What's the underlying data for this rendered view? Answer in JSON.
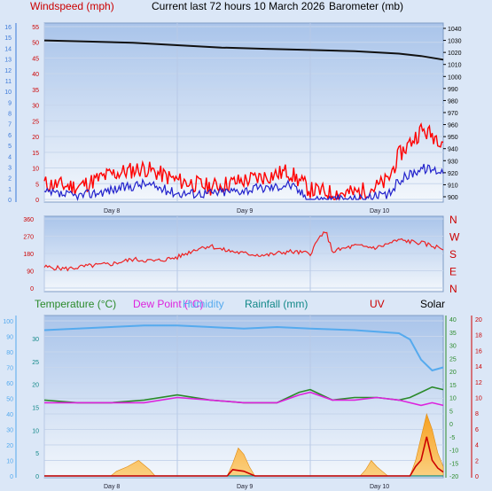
{
  "header": {
    "windspeed_label": "Windspeed (mph)",
    "title": "Current last 72 hours 10 March 2026",
    "barometer_label": "Barometer (mb)"
  },
  "bottom_legend": {
    "temperature": "Temperature (°C)",
    "dew_point": "Dew Point (°C)",
    "humidity": "Humidity",
    "rainfall": "Rainfall (mm)",
    "uv": "UV",
    "solar": "Solar"
  },
  "colors": {
    "wind_axis": "#cc0000",
    "bft_axis": "#3a78d8",
    "pressure": "#111111",
    "wind_gust": "#ff0000",
    "wind_avg": "#2222cc",
    "direction": "#ee2222",
    "temperature": "#2a8a2a",
    "dew_point": "#dd22dd",
    "humidity": "#55aaee",
    "rainfall": "#118888",
    "uv": "#cc0000",
    "solar": "#f09010"
  },
  "chart_data": [
    {
      "type": "line",
      "x_ticks": [
        "Day 8",
        "Day 9",
        "Day 10"
      ],
      "x_hours": [
        0,
        72
      ],
      "day_starts_hours": [
        0,
        24,
        48
      ],
      "left_axis_mph": {
        "min": 0,
        "max": 55,
        "ticks": [
          "0",
          "5",
          "10",
          "15",
          "20",
          "25",
          "30",
          "35",
          "40",
          "45",
          "50",
          "55"
        ]
      },
      "left_axis_bft": {
        "min": 0,
        "max": 16,
        "ticks": [
          "0",
          "1",
          "2",
          "3",
          "4",
          "5",
          "6",
          "7",
          "8",
          "9",
          "10",
          "11",
          "12",
          "13",
          "14",
          "15",
          "16"
        ]
      },
      "right_axis_mb": {
        "min": 900,
        "max": 1040,
        "ticks": [
          "900",
          "910",
          "920",
          "930",
          "940",
          "950",
          "960",
          "970",
          "980",
          "990",
          "1000",
          "1010",
          "1020",
          "1030",
          "1040"
        ]
      },
      "series": [
        {
          "name": "Barometer (mb)",
          "axis": "right",
          "x": [
            0,
            8,
            16,
            24,
            32,
            40,
            48,
            56,
            64,
            68,
            72
          ],
          "values": [
            1030,
            1029,
            1028,
            1026,
            1024,
            1023,
            1022,
            1021,
            1019,
            1017,
            1014
          ]
        },
        {
          "name": "Windspeed (mph)",
          "role": "gust",
          "axis": "left",
          "x": [
            0,
            6,
            12,
            18,
            24,
            30,
            36,
            42,
            44,
            48,
            52,
            56,
            60,
            62,
            64,
            68,
            72
          ],
          "values": [
            5,
            4,
            8,
            10,
            6,
            4,
            6,
            8,
            9,
            3,
            2,
            2,
            4,
            6,
            14,
            22,
            19
          ]
        },
        {
          "name": "Windspeed (mph)",
          "role": "average",
          "axis": "left",
          "x": [
            0,
            6,
            12,
            18,
            24,
            30,
            36,
            42,
            44,
            48,
            52,
            56,
            60,
            62,
            64,
            68,
            72
          ],
          "values": [
            2,
            1,
            3,
            5,
            2,
            2,
            3,
            4,
            5,
            0,
            0,
            0,
            1,
            1,
            6,
            10,
            9
          ]
        }
      ]
    },
    {
      "type": "line",
      "y_axis": {
        "min": 0,
        "max": 360,
        "ticks": [
          "0",
          "90",
          "180",
          "270",
          "360"
        ]
      },
      "compass": [
        "N",
        "W",
        "S",
        "E",
        "N"
      ],
      "series": [
        {
          "name": "Wind direction",
          "x": [
            0,
            4,
            8,
            12,
            16,
            20,
            24,
            28,
            30,
            32,
            36,
            40,
            44,
            48,
            50,
            51,
            52,
            56,
            60,
            64,
            68,
            72
          ],
          "values": [
            110,
            100,
            115,
            125,
            150,
            140,
            160,
            210,
            220,
            200,
            180,
            170,
            190,
            180,
            280,
            280,
            190,
            220,
            210,
            250,
            235,
            205
          ]
        }
      ]
    },
    {
      "type": "area",
      "x_ticks": [
        "Day 8",
        "Day 9",
        "Day 10"
      ],
      "axes": {
        "humidity_pct": {
          "min": 0,
          "max": 100,
          "ticks": [
            "0",
            "10",
            "20",
            "30",
            "40",
            "50",
            "60",
            "70",
            "80",
            "90",
            "100"
          ]
        },
        "rainfall_mm": {
          "min": 0,
          "max": 30,
          "ticks": [
            "0",
            "5",
            "10",
            "15",
            "20",
            "25",
            "30"
          ]
        },
        "temperature_c": {
          "min": -20,
          "max": 40,
          "ticks": [
            "-20",
            "-15",
            "-10",
            "-5",
            "0",
            "5",
            "10",
            "15",
            "20",
            "25",
            "30",
            "35",
            "40"
          ]
        },
        "uv_index": {
          "min": 0,
          "max": 20,
          "ticks": [
            "0",
            "2",
            "4",
            "6",
            "8",
            "10",
            "12",
            "14",
            "16",
            "18",
            "20"
          ]
        }
      },
      "series": [
        {
          "name": "Humidity",
          "axis": "humidity_pct",
          "x": [
            0,
            6,
            12,
            18,
            24,
            30,
            36,
            42,
            48,
            56,
            60,
            64,
            66,
            68,
            70,
            72
          ],
          "values": [
            94,
            95,
            96,
            97,
            97,
            96,
            95,
            96,
            95,
            94,
            93,
            92,
            88,
            75,
            68,
            70
          ]
        },
        {
          "name": "Temperature (°C)",
          "axis": "temperature_c",
          "x": [
            0,
            6,
            12,
            18,
            24,
            30,
            36,
            42,
            46,
            48,
            52,
            56,
            60,
            64,
            66,
            68,
            70,
            72
          ],
          "values": [
            9,
            8,
            8,
            9,
            11,
            9,
            8,
            8,
            12,
            13,
            9,
            10,
            10,
            9,
            10,
            12,
            14,
            13
          ]
        },
        {
          "name": "Dew Point (°C)",
          "axis": "temperature_c",
          "x": [
            0,
            6,
            12,
            18,
            24,
            30,
            36,
            42,
            46,
            48,
            52,
            56,
            60,
            64,
            66,
            68,
            70,
            72
          ],
          "values": [
            8,
            8,
            8,
            8,
            10,
            9,
            8,
            8,
            11,
            12,
            9,
            9,
            10,
            9,
            8,
            7,
            8,
            7
          ]
        },
        {
          "name": "Rainfall (mm)",
          "axis": "rainfall_mm",
          "x": [
            0,
            24,
            48,
            72
          ],
          "values": [
            0,
            0,
            0,
            0
          ]
        },
        {
          "name": "UV",
          "axis": "uv_index",
          "x": [
            0,
            33,
            34,
            36,
            38,
            66,
            67,
            68,
            69,
            70,
            71,
            72
          ],
          "values": [
            0,
            0,
            0.8,
            0.6,
            0,
            0,
            1.2,
            2,
            5,
            2,
            1,
            0.5
          ]
        },
        {
          "name": "Solar",
          "axis": "humidity_pct",
          "x": [
            0,
            12,
            13,
            15,
            17,
            19,
            20,
            33,
            34,
            35,
            36,
            37,
            38,
            57,
            58,
            59,
            60,
            61,
            62,
            66,
            67,
            68,
            69,
            70,
            71,
            72
          ],
          "values": [
            0,
            0,
            3,
            6,
            10,
            4,
            0,
            0,
            8,
            18,
            14,
            6,
            0,
            0,
            4,
            10,
            6,
            3,
            0,
            0,
            10,
            25,
            40,
            30,
            15,
            6
          ]
        }
      ]
    }
  ]
}
